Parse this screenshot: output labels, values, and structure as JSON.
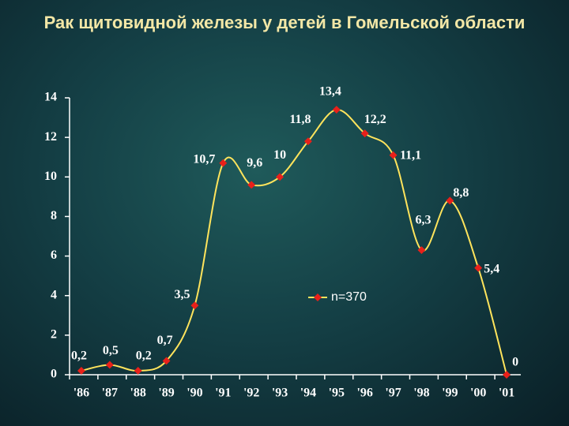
{
  "chart_data": {
    "type": "line",
    "title": "Рак щитовидной железы у  детей в Гомельской области",
    "categories": [
      "'86",
      "'87",
      "'88",
      "'89",
      "'90",
      "'91",
      "'92",
      "'93",
      "'94",
      "'95",
      "'96",
      "'97",
      "'98",
      "'99",
      "'00",
      "'01"
    ],
    "series": [
      {
        "name": "n=370",
        "color": "#ffe45c",
        "marker_color": "#e8201a",
        "values": [
          0.2,
          0.5,
          0.2,
          0.7,
          3.5,
          10.7,
          9.6,
          10,
          11.8,
          13.4,
          12.2,
          11.1,
          6.3,
          8.8,
          5.4,
          0
        ],
        "value_labels": [
          "0,2",
          "0,5",
          "0,2",
          "0,7",
          "3,5",
          "10,7",
          "9,6",
          "10",
          "11,8",
          "13,4",
          "12,2",
          "11,1",
          "6,3",
          "8,8",
          "5,4",
          "0"
        ]
      }
    ],
    "ylim": [
      0,
      14
    ],
    "yticks": [
      0,
      2,
      4,
      6,
      8,
      10,
      12,
      14
    ]
  }
}
